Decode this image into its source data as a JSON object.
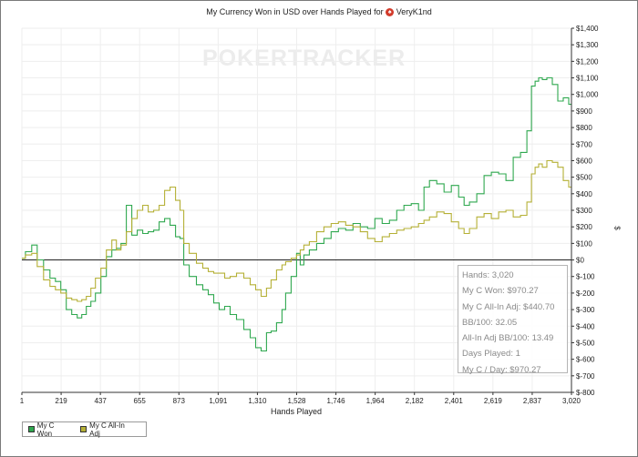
{
  "chart_data": {
    "type": "line",
    "title": "My Currency Won in USD over Hands Played for",
    "player": "VeryK1nd",
    "xlabel": "Hands Played",
    "ylabel": "$",
    "watermark": "POKERTRACKER",
    "xlim": [
      1,
      3020
    ],
    "ylim": [
      -800,
      1400
    ],
    "x_ticks": [
      "1",
      "219",
      "437",
      "655",
      "873",
      "1,091",
      "1,310",
      "1,528",
      "1,746",
      "1,964",
      "2,182",
      "2,401",
      "2,619",
      "2,837",
      "3,020"
    ],
    "y_ticks": [
      "$1,400",
      "$1,300",
      "$1,200",
      "$1,100",
      "$1,000",
      "$900",
      "$800",
      "$700",
      "$600",
      "$500",
      "$400",
      "$300",
      "$200",
      "$100",
      "$0",
      "$-100",
      "$-200",
      "$-300",
      "$-400",
      "$-500",
      "$-600",
      "$-700",
      "$-800"
    ],
    "series": [
      {
        "name": "My C Won",
        "color": "#2fa84f",
        "x": [
          1,
          40,
          70,
          100,
          140,
          170,
          200,
          230,
          260,
          290,
          320,
          340,
          370,
          390,
          420,
          450,
          480,
          510,
          530,
          560,
          590,
          620,
          650,
          680,
          710,
          740,
          770,
          800,
          830,
          860,
          880,
          900,
          940,
          980,
          1010,
          1040,
          1070,
          1100,
          1130,
          1160,
          1200,
          1240,
          1270,
          1300,
          1330,
          1360,
          1380,
          1420,
          1440,
          1460,
          1500,
          1520,
          1540,
          1560,
          1600,
          1640,
          1680,
          1720,
          1760,
          1800,
          1840,
          1880,
          1920,
          1960,
          2000,
          2040,
          2080,
          2120,
          2160,
          2200,
          2220,
          2260,
          2300,
          2340,
          2380,
          2420,
          2440,
          2480,
          2520,
          2560,
          2600,
          2640,
          2680,
          2720,
          2760,
          2790,
          2810,
          2830,
          2850,
          2870,
          2900,
          2930,
          2960,
          2990,
          3020
        ],
        "y": [
          10,
          50,
          90,
          0,
          -60,
          -110,
          -130,
          -180,
          -300,
          -330,
          -350,
          -330,
          -280,
          -250,
          -200,
          -100,
          20,
          60,
          70,
          100,
          330,
          150,
          180,
          160,
          170,
          180,
          230,
          250,
          210,
          140,
          130,
          -30,
          -100,
          -150,
          -180,
          -210,
          -260,
          -300,
          -280,
          -330,
          -360,
          -420,
          -470,
          -530,
          -550,
          -440,
          -430,
          -380,
          -300,
          -200,
          -100,
          40,
          -30,
          30,
          60,
          100,
          130,
          170,
          190,
          180,
          220,
          200,
          190,
          250,
          220,
          240,
          300,
          330,
          340,
          300,
          440,
          480,
          460,
          410,
          450,
          380,
          330,
          350,
          400,
          510,
          530,
          520,
          480,
          620,
          650,
          780,
          1050,
          1080,
          1100,
          1090,
          1100,
          1060,
          960,
          980,
          940
        ]
      },
      {
        "name": "My C All-In Adj",
        "color": "#b5b036",
        "x": [
          1,
          40,
          70,
          100,
          140,
          170,
          200,
          230,
          260,
          290,
          320,
          340,
          370,
          390,
          420,
          450,
          480,
          510,
          530,
          560,
          590,
          620,
          650,
          680,
          710,
          740,
          770,
          800,
          830,
          860,
          880,
          900,
          940,
          980,
          1010,
          1040,
          1070,
          1100,
          1130,
          1160,
          1200,
          1240,
          1270,
          1300,
          1330,
          1360,
          1380,
          1420,
          1440,
          1460,
          1500,
          1520,
          1540,
          1560,
          1600,
          1640,
          1680,
          1720,
          1760,
          1800,
          1840,
          1880,
          1920,
          1960,
          2000,
          2040,
          2080,
          2120,
          2160,
          2200,
          2220,
          2260,
          2300,
          2340,
          2380,
          2420,
          2440,
          2480,
          2520,
          2560,
          2600,
          2640,
          2680,
          2720,
          2760,
          2790,
          2810,
          2830,
          2850,
          2870,
          2900,
          2930,
          2960,
          2990,
          3020
        ],
        "y": [
          10,
          30,
          40,
          -40,
          -120,
          -160,
          -180,
          -200,
          -230,
          -240,
          -250,
          -240,
          -220,
          -170,
          -110,
          -50,
          60,
          120,
          60,
          90,
          170,
          250,
          300,
          330,
          290,
          300,
          330,
          420,
          440,
          360,
          300,
          100,
          40,
          -20,
          -50,
          -70,
          -80,
          -80,
          -110,
          -100,
          -80,
          -110,
          -150,
          -180,
          -220,
          -170,
          -120,
          -60,
          -30,
          -10,
          10,
          30,
          60,
          90,
          110,
          170,
          200,
          220,
          230,
          210,
          200,
          170,
          130,
          110,
          140,
          160,
          180,
          190,
          200,
          220,
          240,
          260,
          290,
          280,
          230,
          190,
          160,
          190,
          260,
          280,
          250,
          290,
          300,
          260,
          270,
          350,
          520,
          560,
          580,
          560,
          600,
          590,
          560,
          480,
          440
        ]
      }
    ]
  },
  "stats": [
    "Hands: 3,020",
    "My C Won: $970.27",
    "My C All-In Adj: $440.70",
    "BB/100: 32.05",
    "All-In Adj BB/100: 13.49",
    "Days Played: 1",
    "My C / Day: $970.27"
  ]
}
